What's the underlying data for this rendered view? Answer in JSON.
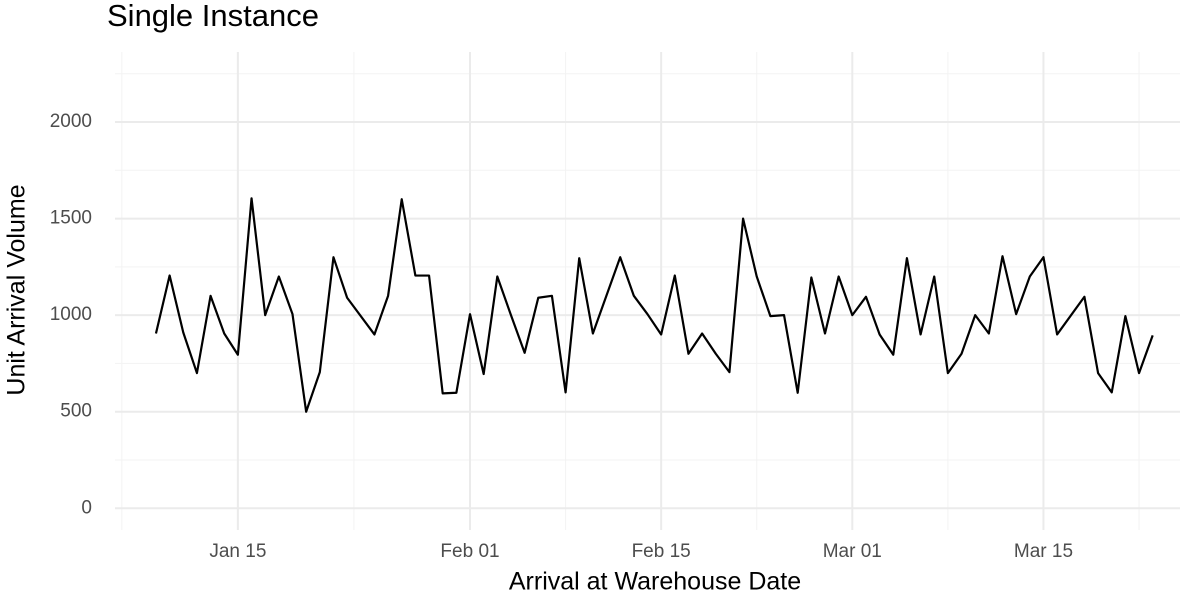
{
  "chart_data": {
    "type": "line",
    "title": "Single Instance",
    "x_label": "Arrival at Warehouse Date",
    "y_label": "Unit Arrival Volume",
    "x": [
      "Jan 09",
      "Jan 10",
      "Jan 11",
      "Jan 12",
      "Jan 13",
      "Jan 14",
      "Jan 15",
      "Jan 16",
      "Jan 17",
      "Jan 18",
      "Jan 19",
      "Jan 20",
      "Jan 21",
      "Jan 22",
      "Jan 23",
      "Jan 25",
      "Jan 26",
      "Jan 27",
      "Jan 28",
      "Jan 29",
      "Jan 30",
      "Jan 31",
      "Feb 01",
      "Feb 02",
      "Feb 03",
      "Feb 04",
      "Feb 05",
      "Feb 06",
      "Feb 07",
      "Feb 08",
      "Feb 09",
      "Feb 10",
      "Feb 12",
      "Feb 13",
      "Feb 14",
      "Feb 15",
      "Feb 16",
      "Feb 17",
      "Feb 18",
      "Feb 19",
      "Feb 20",
      "Feb 21",
      "Feb 22",
      "Feb 23",
      "Feb 24",
      "Feb 25",
      "Feb 26",
      "Feb 27",
      "Feb 28",
      "Mar 01",
      "Mar 02",
      "Mar 03",
      "Mar 04",
      "Mar 05",
      "Mar 06",
      "Mar 07",
      "Mar 08",
      "Mar 09",
      "Mar 10",
      "Mar 11",
      "Mar 12",
      "Mar 13",
      "Mar 14",
      "Mar 15",
      "Mar 16",
      "Mar 18",
      "Mar 19",
      "Mar 20",
      "Mar 21",
      "Mar 22",
      "Mar 23"
    ],
    "series": [
      {
        "name": "Unit Arrival Volume",
        "color": "#000000",
        "values": [
          905,
          1205,
          910,
          700,
          1100,
          905,
          795,
          1605,
          1000,
          1200,
          1005,
          500,
          705,
          1300,
          1090,
          900,
          1100,
          1600,
          1205,
          1205,
          595,
          598,
          1005,
          695,
          1200,
          1000,
          805,
          1090,
          1100,
          600,
          1295,
          905,
          1300,
          1100,
          1005,
          900,
          1205,
          800,
          905,
          800,
          705,
          1500,
          1200,
          995,
          1000,
          598,
          1195,
          905,
          1200,
          1000,
          1095,
          900,
          795,
          1295,
          900,
          1200,
          700,
          800,
          1000,
          905,
          1305,
          1005,
          1200,
          1300,
          900,
          1095,
          700,
          600,
          995,
          700,
          895
        ]
      }
    ],
    "xlim": [
      "Jan 06",
      "Mar 25"
    ],
    "xticks": [
      "Jan 15",
      "Feb 01",
      "Feb 15",
      "Mar 01",
      "Mar 15"
    ],
    "ylim": [
      -112.5,
      2362.5
    ],
    "yticks": [
      0,
      500,
      1000,
      1500,
      2000
    ],
    "grid": true
  }
}
